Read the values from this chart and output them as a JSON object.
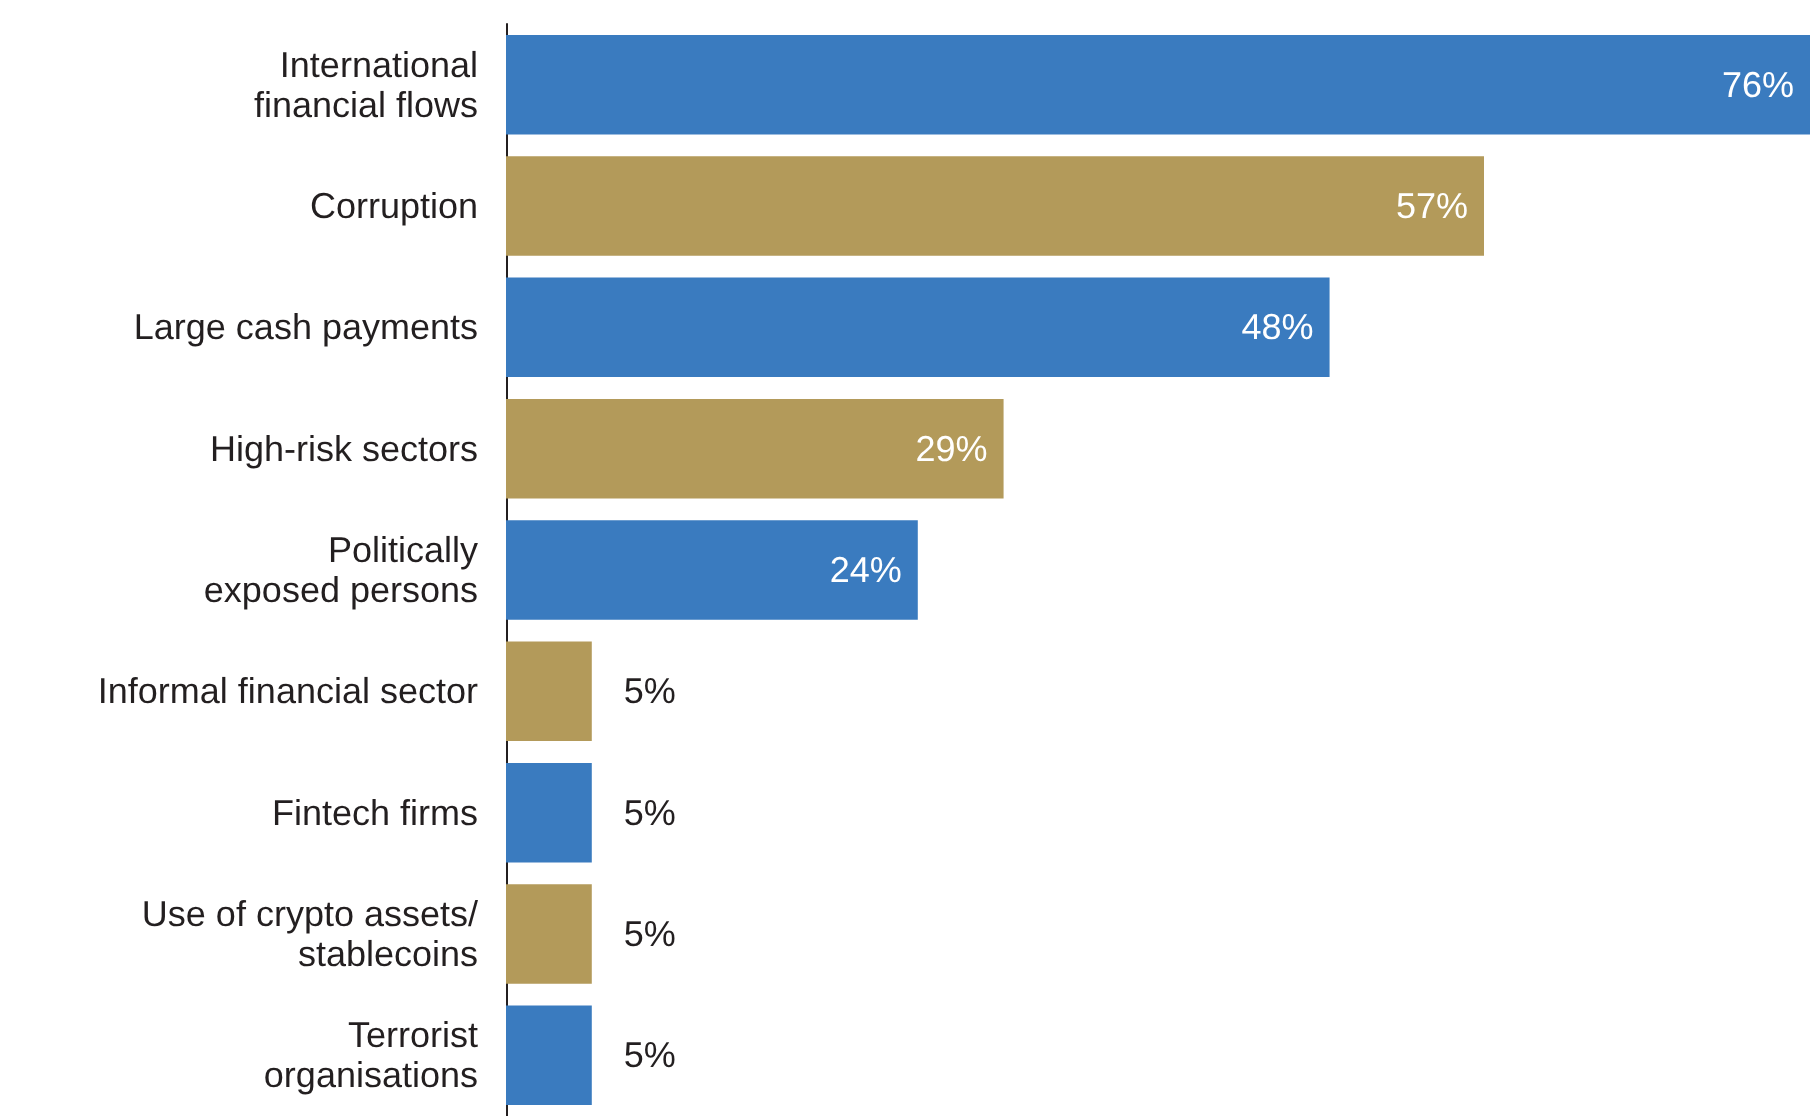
{
  "chart_data": {
    "type": "bar",
    "orientation": "horizontal",
    "categories": [
      "International\nfinancial flows",
      "Corruption",
      "Large cash payments",
      "High-risk sectors",
      "Politically\nexposed persons",
      "Informal financial sector",
      "Fintech firms",
      "Use of crypto assets/\nstablecoins",
      "Terrorist\norganisations"
    ],
    "values": [
      76,
      57,
      48,
      29,
      24,
      5,
      5,
      5,
      5
    ],
    "colors": [
      "#3a7bbf",
      "#b39a5a",
      "#3a7bbf",
      "#b39a5a",
      "#3a7bbf",
      "#b39a5a",
      "#3a7bbf",
      "#b39a5a",
      "#3a7bbf"
    ],
    "value_labels": [
      "76%",
      "57%",
      "48%",
      "29%",
      "24%",
      "5%",
      "5%",
      "5%",
      "5%"
    ]
  }
}
